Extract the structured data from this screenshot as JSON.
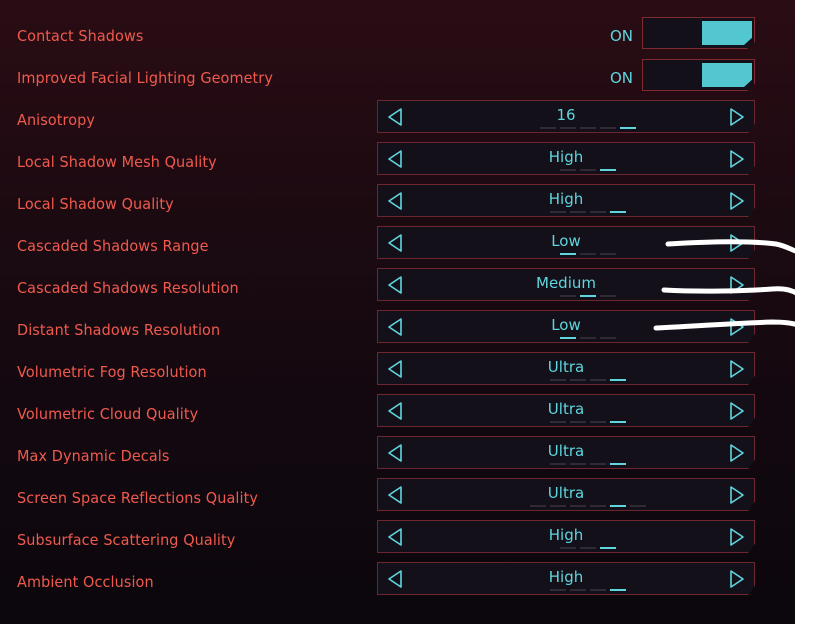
{
  "settings": [
    {
      "label": "Contact Shadows",
      "type": "toggle",
      "value": "ON"
    },
    {
      "label": "Improved Facial Lighting Geometry",
      "type": "toggle",
      "value": "ON"
    },
    {
      "label": "Anisotropy",
      "type": "selector",
      "value": "16",
      "level_index": 4,
      "levels": 5
    },
    {
      "label": "Local Shadow Mesh Quality",
      "type": "selector",
      "value": "High",
      "level_index": 2,
      "levels": 3
    },
    {
      "label": "Local Shadow Quality",
      "type": "selector",
      "value": "High",
      "level_index": 3,
      "levels": 4
    },
    {
      "label": "Cascaded Shadows Range",
      "type": "selector",
      "value": "Low",
      "level_index": 0,
      "levels": 3
    },
    {
      "label": "Cascaded Shadows Resolution",
      "type": "selector",
      "value": "Medium",
      "level_index": 1,
      "levels": 3
    },
    {
      "label": "Distant Shadows Resolution",
      "type": "selector",
      "value": "Low",
      "level_index": 0,
      "levels": 3
    },
    {
      "label": "Volumetric Fog Resolution",
      "type": "selector",
      "value": "Ultra",
      "level_index": 3,
      "levels": 4
    },
    {
      "label": "Volumetric Cloud Quality",
      "type": "selector",
      "value": "Ultra",
      "level_index": 3,
      "levels": 4
    },
    {
      "label": "Max Dynamic Decals",
      "type": "selector",
      "value": "Ultra",
      "level_index": 3,
      "levels": 4
    },
    {
      "label": "Screen Space Reflections Quality",
      "type": "selector",
      "value": "Ultra",
      "level_index": 4,
      "levels": 6
    },
    {
      "label": "Subsurface Scattering Quality",
      "type": "selector",
      "value": "High",
      "level_index": 2,
      "levels": 3
    },
    {
      "label": "Ambient Occlusion",
      "type": "selector",
      "value": "High",
      "level_index": 3,
      "levels": 4
    }
  ],
  "colors": {
    "label": "#f05a4e",
    "accent": "#5fd6de",
    "border": "#6c2630",
    "toggle_fill": "#52c7cf"
  },
  "icons": {
    "left": "triangle-left-outline",
    "right": "triangle-right-outline"
  }
}
